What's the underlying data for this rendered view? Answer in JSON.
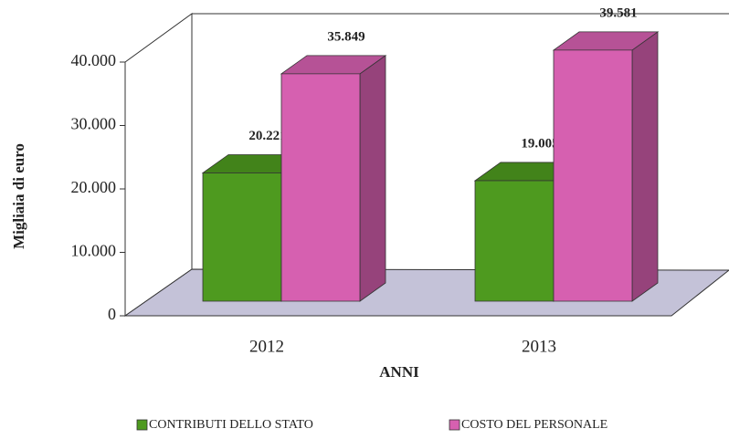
{
  "chart_data": {
    "type": "bar3d",
    "y_label": "Migliaia di euro",
    "x_label": "ANNI",
    "categories": [
      "2012",
      "2013"
    ],
    "series": [
      {
        "name": "CONTRIBUTI DELLO STATO",
        "color": "#4e9a1f",
        "values": [
          20221,
          19005
        ],
        "value_labels": [
          "20.221",
          "19.005"
        ]
      },
      {
        "name": "COSTO DEL PERSONALE",
        "color": "#d660b0",
        "values": [
          35849,
          39581
        ],
        "value_labels": [
          "35.849",
          "39.581"
        ]
      }
    ],
    "ylim": [
      0,
      40000
    ],
    "yticks": [
      0,
      {
        "value": 10000,
        "label": "10.000"
      },
      {
        "value": 20000,
        "label": "20.000"
      },
      {
        "value": 30000,
        "label": "30.000"
      },
      {
        "value": 40000,
        "label": "40.000"
      }
    ],
    "legend": "bottom"
  }
}
